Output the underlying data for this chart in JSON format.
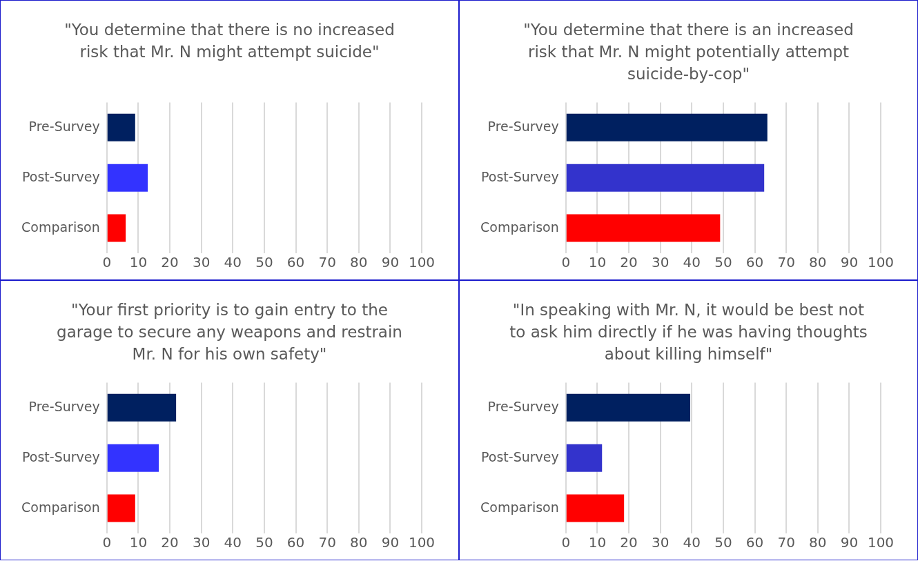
{
  "chart_data": [
    {
      "type": "bar",
      "orientation": "horizontal",
      "title": "\"You determine that there is no increased risk that Mr. N might attempt suicide\"",
      "categories": [
        "Pre-Survey",
        "Post-Survey",
        "Comparison"
      ],
      "values": [
        9,
        13,
        6
      ],
      "colors": [
        "#002060",
        "#3333ff",
        "#ff0000"
      ],
      "xlim": [
        0,
        100
      ],
      "xticks": [
        0,
        10,
        20,
        30,
        40,
        50,
        60,
        70,
        80,
        90,
        100
      ],
      "grid": "x"
    },
    {
      "type": "bar",
      "orientation": "horizontal",
      "title": "\"You determine that there is an increased risk that Mr. N might potentially attempt suicide-by-cop\"",
      "categories": [
        "Pre-Survey",
        "Post-Survey",
        "Comparison"
      ],
      "values": [
        64,
        63,
        49
      ],
      "colors": [
        "#002060",
        "#3333cc",
        "#ff0000"
      ],
      "xlim": [
        0,
        100
      ],
      "xticks": [
        0,
        10,
        20,
        30,
        40,
        50,
        60,
        70,
        80,
        90,
        100
      ],
      "grid": "x"
    },
    {
      "type": "bar",
      "orientation": "horizontal",
      "title": "\"Your first priority is to gain entry to the garage to secure any weapons and restrain Mr. N for his own safety\"",
      "categories": [
        "Pre-Survey",
        "Post-Survey",
        "Comparison"
      ],
      "values": [
        22,
        16.5,
        9
      ],
      "colors": [
        "#002060",
        "#3333ff",
        "#ff0000"
      ],
      "xlim": [
        0,
        100
      ],
      "xticks": [
        0,
        10,
        20,
        30,
        40,
        50,
        60,
        70,
        80,
        90,
        100
      ],
      "grid": "x"
    },
    {
      "type": "bar",
      "orientation": "horizontal",
      "title": "\"In speaking with Mr. N, it would be best not to ask him directly if he was having thoughts about killing himself\"",
      "categories": [
        "Pre-Survey",
        "Post-Survey",
        "Comparison"
      ],
      "values": [
        39.5,
        11.5,
        18.5
      ],
      "colors": [
        "#002060",
        "#3333cc",
        "#ff0000"
      ],
      "xlim": [
        0,
        100
      ],
      "xticks": [
        0,
        10,
        20,
        30,
        40,
        50,
        60,
        70,
        80,
        90,
        100
      ],
      "grid": "x"
    }
  ]
}
